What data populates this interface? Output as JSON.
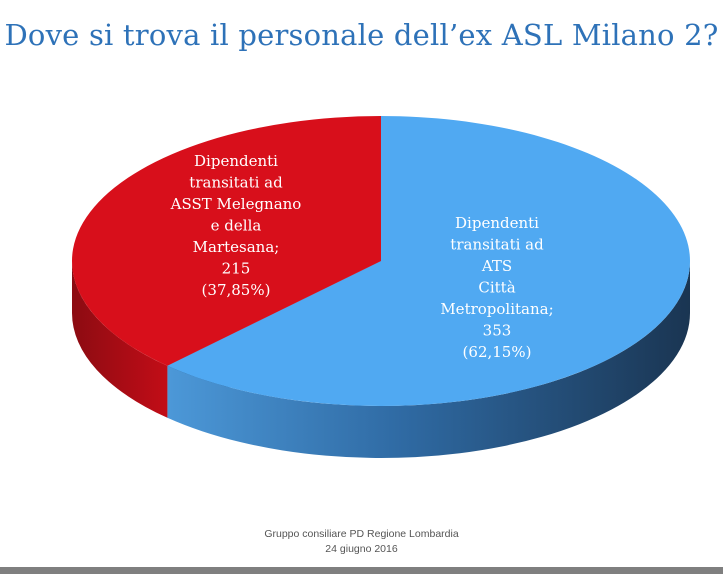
{
  "chart_data": {
    "type": "pie",
    "title": "Dove si trova il personale dell’ex ASL Milano 2?",
    "slices": [
      {
        "name": "ats",
        "label_lines": [
          "Dipendenti",
          "transitati ad",
          "ATS",
          "Città",
          "Metropolitana;",
          "353",
          "(62,15%)"
        ],
        "value": 353,
        "percent": 62.15,
        "color": "#50a9f2",
        "side_color_light": "#3f86c8",
        "side_color_dark": "#1e3f60"
      },
      {
        "name": "asst",
        "label_lines": [
          "Dipendenti",
          "transitati ad",
          "ASST Melegnano",
          "e della",
          "Martesana;",
          "215",
          "(37,85%)"
        ],
        "value": 215,
        "percent": 37.85,
        "color": "#d80f1b",
        "side_color_light": "#b50c14",
        "side_color_dark": "#7a0a10"
      }
    ]
  },
  "footer": {
    "line1": "Gruppo consiliare PD Regione Lombardia",
    "line2": "24 giugno 2016"
  }
}
